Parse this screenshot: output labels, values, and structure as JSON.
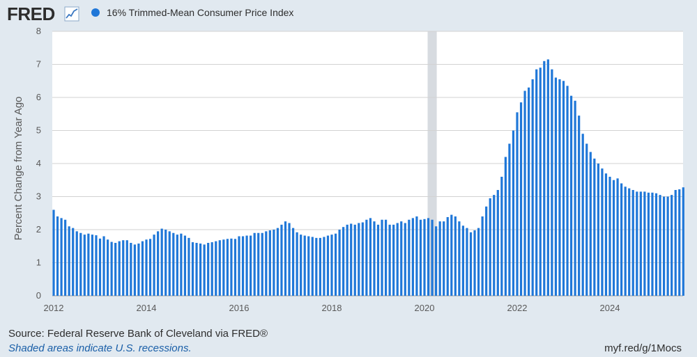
{
  "header": {
    "logo_text": "FRED",
    "logo_icon": "line-chart-icon",
    "series_name": "16% Trimmed-Mean Consumer Price Index"
  },
  "colors": {
    "bar": "#1f77d8",
    "background": "#e1e9f0",
    "plot_bg": "#ffffff",
    "grid": "#d2d2d2",
    "recession": "#d7dbe0"
  },
  "footer": {
    "source": "Source: Federal Reserve Bank of Cleveland via FRED®",
    "recession_note": "Shaded areas indicate U.S. recessions.",
    "short_link": "myf.red/g/1Mocs"
  },
  "chart_data": {
    "type": "bar",
    "title": "16% Trimmed-Mean Consumer Price Index",
    "xlabel": "",
    "ylabel": "Percent Change from Year Ago",
    "ylim": [
      0,
      8
    ],
    "yticks": [
      "0",
      "1",
      "2",
      "3",
      "4",
      "5",
      "6",
      "7",
      "8"
    ],
    "xticks": [
      "2012",
      "2014",
      "2016",
      "2018",
      "2020",
      "2022",
      "2024"
    ],
    "start": "2012-01",
    "frequency": "monthly",
    "recessions": [
      {
        "start": "2020-02",
        "end": "2020-04"
      }
    ],
    "values": [
      2.6,
      2.4,
      2.35,
      2.3,
      2.1,
      2.05,
      1.95,
      1.9,
      1.85,
      1.88,
      1.85,
      1.83,
      1.73,
      1.8,
      1.7,
      1.63,
      1.6,
      1.65,
      1.68,
      1.68,
      1.6,
      1.55,
      1.58,
      1.65,
      1.7,
      1.72,
      1.85,
      1.95,
      2.03,
      2.0,
      1.95,
      1.9,
      1.85,
      1.88,
      1.82,
      1.75,
      1.62,
      1.6,
      1.58,
      1.55,
      1.6,
      1.62,
      1.65,
      1.68,
      1.7,
      1.72,
      1.73,
      1.72,
      1.8,
      1.8,
      1.82,
      1.82,
      1.9,
      1.9,
      1.9,
      1.95,
      1.98,
      2.0,
      2.05,
      2.15,
      2.25,
      2.2,
      2.05,
      1.92,
      1.85,
      1.82,
      1.8,
      1.78,
      1.75,
      1.75,
      1.78,
      1.82,
      1.85,
      1.88,
      2.0,
      2.08,
      2.15,
      2.18,
      2.15,
      2.2,
      2.22,
      2.3,
      2.35,
      2.25,
      2.15,
      2.3,
      2.3,
      2.15,
      2.15,
      2.2,
      2.25,
      2.2,
      2.3,
      2.35,
      2.4,
      2.3,
      2.32,
      2.35,
      2.3,
      2.1,
      2.25,
      2.25,
      2.38,
      2.45,
      2.4,
      2.25,
      2.12,
      2.05,
      1.92,
      1.98,
      2.05,
      2.4,
      2.7,
      2.95,
      3.05,
      3.2,
      3.6,
      4.2,
      4.6,
      5.0,
      5.55,
      5.85,
      6.2,
      6.3,
      6.55,
      6.85,
      6.9,
      7.1,
      7.15,
      6.85,
      6.6,
      6.55,
      6.5,
      6.35,
      6.05,
      5.9,
      5.45,
      4.9,
      4.6,
      4.35,
      4.15,
      4.0,
      3.85,
      3.7,
      3.6,
      3.5,
      3.55,
      3.4,
      3.3,
      3.25,
      3.2,
      3.15,
      3.15,
      3.15,
      3.12,
      3.12,
      3.1,
      3.05,
      3.0,
      3.0,
      3.05,
      3.2,
      3.22,
      3.28
    ]
  }
}
